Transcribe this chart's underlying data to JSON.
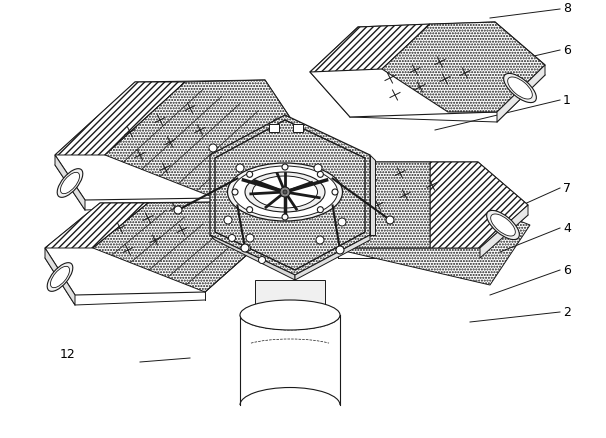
{
  "bg_color": "#ffffff",
  "line_color": "#1a1a1a",
  "fig_width": 6.06,
  "fig_height": 4.38,
  "dpi": 100,
  "labels_right": [
    [
      "8",
      555,
      10
    ],
    [
      "6",
      555,
      50
    ],
    [
      "1",
      555,
      100
    ],
    [
      "7",
      555,
      185
    ],
    [
      "4",
      555,
      225
    ],
    [
      "6",
      555,
      268
    ],
    [
      "2",
      555,
      310
    ]
  ],
  "label_left": [
    "12",
    60,
    355
  ]
}
